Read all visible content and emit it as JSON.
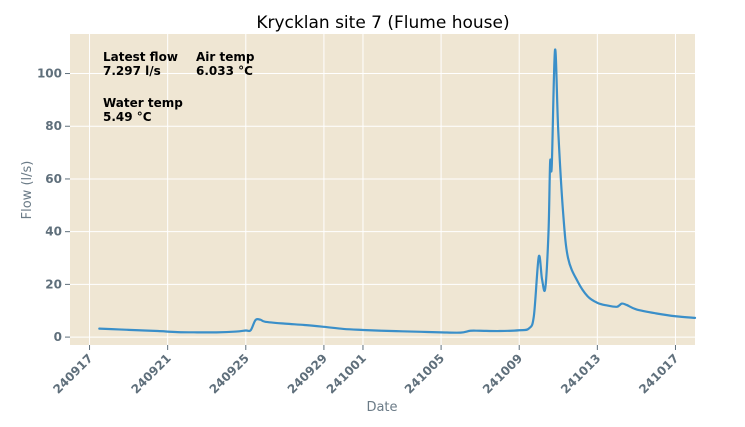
{
  "chart_data": {
    "type": "line",
    "title": "Krycklan site 7 (Flume house)",
    "xlabel": "Date",
    "ylabel": "Flow (l/s)",
    "ylim": [
      -3,
      115
    ],
    "xlim": [
      "240916",
      "241018"
    ],
    "grid": true,
    "colors": {
      "plot_bg": "#efe6d3",
      "line": "#3a8fc9",
      "grid": "#ffffff"
    },
    "x_ticks": [
      "240917",
      "240921",
      "240925",
      "240929",
      "241001",
      "241005",
      "241009",
      "241013",
      "241017"
    ],
    "y_ticks": [
      0,
      20,
      40,
      60,
      80,
      100
    ],
    "annotations": [
      {
        "label": "Latest flow",
        "value": "7.297 l/s"
      },
      {
        "label": "Air temp",
        "value": "6.033 °C"
      },
      {
        "label": "Water temp",
        "value": "5.49 °C"
      }
    ],
    "series": [
      {
        "points": [
          [
            "240917 12:00",
            3.2
          ],
          [
            "240918 12:00",
            2.9
          ],
          [
            "240919 12:00",
            2.6
          ],
          [
            "240920 12:00",
            2.3
          ],
          [
            "240921 12:00",
            1.9
          ],
          [
            "240922 12:00",
            1.8
          ],
          [
            "240923 12:00",
            1.8
          ],
          [
            "240924 12:00",
            2.1
          ],
          [
            "240925 00:00",
            2.5
          ],
          [
            "240925 06:00",
            2.6
          ],
          [
            "240925 12:00",
            6.5
          ],
          [
            "240925 18:00",
            6.6
          ],
          [
            "240926 00:00",
            5.8
          ],
          [
            "240927 00:00",
            5.1
          ],
          [
            "240928 00:00",
            4.6
          ],
          [
            "240929 00:00",
            3.9
          ],
          [
            "240930 00:00",
            3.1
          ],
          [
            "241001 00:00",
            2.7
          ],
          [
            "241002 00:00",
            2.4
          ],
          [
            "241003 00:00",
            2.2
          ],
          [
            "241004 00:00",
            2.0
          ],
          [
            "241005 00:00",
            1.8
          ],
          [
            "241006 00:00",
            1.7
          ],
          [
            "241006 12:00",
            2.4
          ],
          [
            "241007 00:00",
            2.4
          ],
          [
            "241008 00:00",
            2.3
          ],
          [
            "241009 00:00",
            2.6
          ],
          [
            "241009 12:00",
            3.3
          ],
          [
            "241009 18:00",
            8.0
          ],
          [
            "241010 00:00",
            30.5
          ],
          [
            "241010 04:00",
            22.0
          ],
          [
            "241010 08:00",
            18.5
          ],
          [
            "241010 12:00",
            40.0
          ],
          [
            "241010 14:00",
            66.5
          ],
          [
            "241010 16:00",
            65.0
          ],
          [
            "241010 20:00",
            109.0
          ],
          [
            "241011 00:00",
            78.0
          ],
          [
            "241011 06:00",
            47.0
          ],
          [
            "241011 12:00",
            30.0
          ],
          [
            "241012 00:00",
            21.0
          ],
          [
            "241012 12:00",
            15.5
          ],
          [
            "241013 00:00",
            13.0
          ],
          [
            "241013 12:00",
            12.0
          ],
          [
            "241014 00:00",
            11.5
          ],
          [
            "241014 06:00",
            12.7
          ],
          [
            "241014 12:00",
            12.2
          ],
          [
            "241015 00:00",
            10.5
          ],
          [
            "241016 00:00",
            9.0
          ],
          [
            "241017 00:00",
            7.9
          ],
          [
            "241018 00:00",
            7.297
          ]
        ]
      }
    ]
  }
}
